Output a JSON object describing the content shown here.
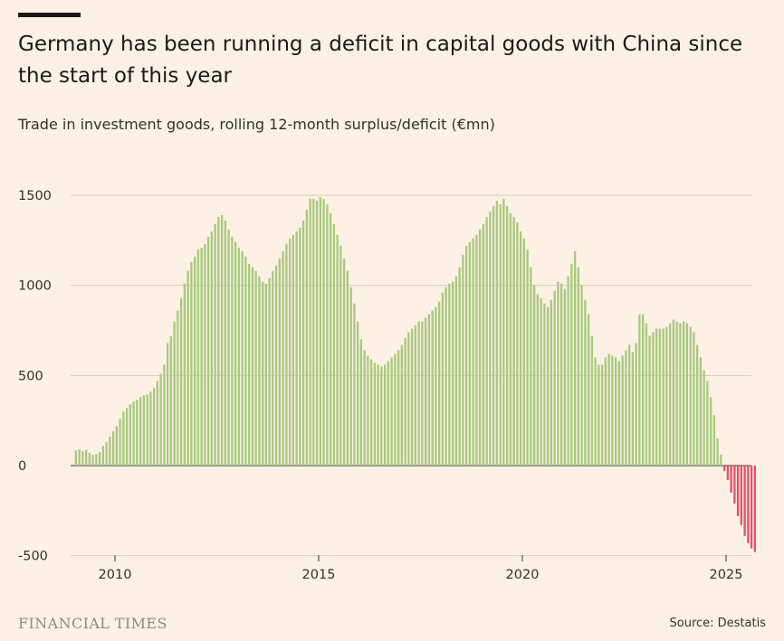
{
  "header": {
    "title": "Germany has been running a deficit in capital goods with China since the start of this year",
    "subtitle": "Trade in investment goods, rolling 12-month surplus/deficit (€mn)"
  },
  "footer": {
    "brand": "FINANCIAL TIMES",
    "source": "Source: Destatis"
  },
  "colors": {
    "background": "#FDF1E5",
    "surplus": "#A8C97F",
    "deficit": "#E8506A",
    "gridline": "#D8CDBF",
    "zero_line": "#33302E"
  },
  "chart_data": {
    "type": "bar",
    "title": "Germany has been running a deficit in capital goods with China since the start of this year",
    "subtitle": "Trade in investment goods, rolling 12-month surplus/deficit (€mn)",
    "xlabel": "",
    "ylabel": "",
    "ylim": [
      -500,
      1600
    ],
    "yticks": [
      1500,
      1000,
      500,
      0,
      -500
    ],
    "xticks": [
      2010,
      2015,
      2020,
      2025
    ],
    "x_start": 2009.0,
    "x_step_months": 1,
    "grid": true,
    "series": [
      {
        "name": "Rolling 12-month surplus/deficit",
        "start": "2009-01",
        "values": [
          85,
          90,
          80,
          88,
          70,
          60,
          65,
          75,
          110,
          130,
          160,
          190,
          220,
          260,
          300,
          320,
          340,
          355,
          365,
          380,
          390,
          395,
          410,
          430,
          470,
          510,
          560,
          680,
          720,
          800,
          860,
          930,
          1010,
          1080,
          1130,
          1160,
          1200,
          1210,
          1230,
          1270,
          1300,
          1340,
          1380,
          1390,
          1360,
          1310,
          1270,
          1240,
          1210,
          1190,
          1160,
          1120,
          1100,
          1080,
          1050,
          1020,
          1010,
          1040,
          1080,
          1110,
          1150,
          1190,
          1230,
          1260,
          1280,
          1300,
          1320,
          1360,
          1420,
          1480,
          1480,
          1470,
          1490,
          1480,
          1450,
          1400,
          1340,
          1280,
          1220,
          1150,
          1080,
          990,
          900,
          800,
          700,
          640,
          610,
          590,
          570,
          560,
          550,
          560,
          580,
          600,
          620,
          640,
          670,
          710,
          740,
          760,
          780,
          800,
          800,
          820,
          840,
          860,
          880,
          910,
          960,
          990,
          1010,
          1020,
          1050,
          1100,
          1170,
          1220,
          1240,
          1260,
          1280,
          1310,
          1340,
          1380,
          1410,
          1440,
          1470,
          1450,
          1480,
          1440,
          1400,
          1380,
          1350,
          1300,
          1260,
          1200,
          1100,
          1000,
          950,
          930,
          900,
          880,
          920,
          970,
          1020,
          1010,
          980,
          1050,
          1120,
          1190,
          1100,
          1000,
          920,
          840,
          720,
          600,
          560,
          560,
          600,
          620,
          610,
          600,
          580,
          610,
          640,
          670,
          630,
          680,
          840,
          840,
          790,
          720,
          740,
          760,
          760,
          760,
          770,
          790,
          810,
          800,
          790,
          800,
          790,
          770,
          740,
          670,
          600,
          530,
          470,
          380,
          280,
          150,
          60,
          -30,
          -80,
          -150,
          -210,
          -280,
          -330,
          -390,
          -430,
          -460,
          -480
        ]
      }
    ],
    "annotations": []
  }
}
